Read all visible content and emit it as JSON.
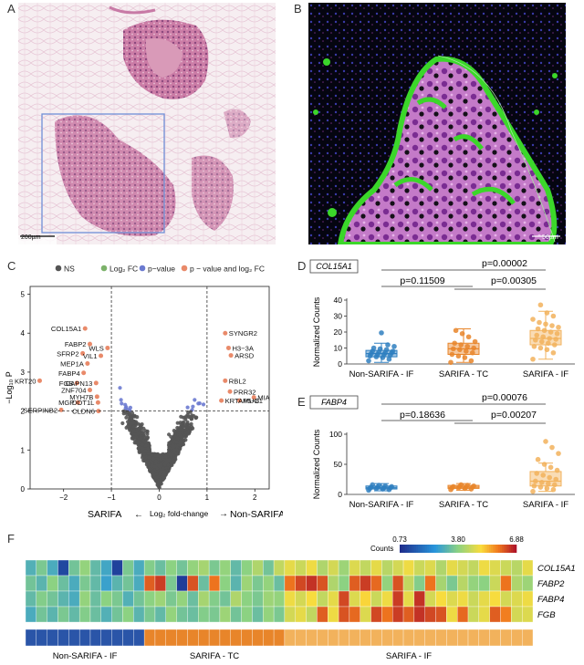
{
  "panels": {
    "A": {
      "label": "A",
      "scale_bar": "200µm"
    },
    "B": {
      "label": "B",
      "scale_bar": "50µm"
    },
    "C": {
      "label": "C"
    },
    "D": {
      "label": "D"
    },
    "E": {
      "label": "E"
    },
    "F": {
      "label": "F"
    }
  },
  "volcano": {
    "legend": [
      "NS",
      "Log₂ FC",
      "p−value",
      "p − value and log₂ FC"
    ],
    "legend_colors": [
      "#555555",
      "#7cb26a",
      "#6b7ad0",
      "#e98a6a"
    ],
    "ylabel": "−Log₁₀ P",
    "xlabel": "Log₂ fold-change",
    "left_group": "SARIFA",
    "right_group": "Non-SARIFA",
    "left_arrow": "←",
    "right_arrow": "→",
    "x_ticks": [
      "−2",
      "−1",
      "0",
      "1",
      "2"
    ],
    "y_ticks": [
      "0",
      "1",
      "2",
      "3",
      "4",
      "5"
    ],
    "gene_labels": [
      {
        "t": "COL15A1",
        "x": -1.55,
        "y": 4.12
      },
      {
        "t": "FABP2",
        "x": -1.45,
        "y": 3.72
      },
      {
        "t": "WLS",
        "x": -1.08,
        "y": 3.62
      },
      {
        "t": "SFRP2",
        "x": -1.6,
        "y": 3.48
      },
      {
        "t": "VIL1",
        "x": -1.22,
        "y": 3.42
      },
      {
        "t": "MEP1A",
        "x": -1.5,
        "y": 3.22
      },
      {
        "t": "FABP4",
        "x": -1.58,
        "y": 2.98
      },
      {
        "t": "KRT20",
        "x": -2.5,
        "y": 2.78
      },
      {
        "t": "FGB",
        "x": -1.72,
        "y": 2.72
      },
      {
        "t": "CAPN13",
        "x": -1.32,
        "y": 2.72
      },
      {
        "t": "ZNF704",
        "x": -1.45,
        "y": 2.54
      },
      {
        "t": "MYH7B",
        "x": -1.3,
        "y": 2.37
      },
      {
        "t": "MGP",
        "x": -1.7,
        "y": 2.22
      },
      {
        "t": "DOT1L",
        "x": -1.28,
        "y": 2.22
      },
      {
        "t": "SERPINB2",
        "x": -2.05,
        "y": 2.03
      },
      {
        "t": "CLDN6",
        "x": -1.27,
        "y": 2.0
      },
      {
        "t": "SYNGR2",
        "x": 1.38,
        "y": 4.0
      },
      {
        "t": "H3−3A",
        "x": 1.45,
        "y": 3.62
      },
      {
        "t": "ARSD",
        "x": 1.5,
        "y": 3.43
      },
      {
        "t": "RBL2",
        "x": 1.38,
        "y": 2.78
      },
      {
        "t": "PRR32",
        "x": 1.48,
        "y": 2.5
      },
      {
        "t": "KRTAP5−8",
        "x": 1.3,
        "y": 2.27
      },
      {
        "t": "MUC1",
        "x": 1.68,
        "y": 2.27
      },
      {
        "t": "MIA",
        "x": 1.98,
        "y": 2.35
      }
    ]
  },
  "chart_data": [
    {
      "type": "scatter",
      "title": "",
      "xlabel": "Log₂ fold-change",
      "ylabel": "−Log₁₀ P",
      "xlim": [
        -2.7,
        2.3
      ],
      "ylim": [
        0,
        5.2
      ],
      "thresholds": {
        "x": [
          -1,
          1
        ],
        "y": 2
      },
      "legend": [
        "NS",
        "Log₂ FC",
        "p−value",
        "p − value and log₂ FC"
      ],
      "legend_placement": "top"
    },
    {
      "type": "box",
      "title": "COL15A1",
      "ylabel": "Normalized Counts",
      "ylim": [
        0,
        40
      ],
      "y_ticks": [
        "0",
        "10",
        "20",
        "30",
        "40"
      ],
      "categories": [
        "Non-SARIFA - IF",
        "SARIFA - TC",
        "SARIFA - IF"
      ],
      "colors": [
        "#2f7fc0",
        "#e8852a",
        "#f2b25c"
      ],
      "boxes": [
        {
          "q1": 4.5,
          "median": 6.5,
          "q3": 8.5,
          "whisker_low": 1,
          "whisker_high": 13,
          "points": [
            2,
            3,
            4,
            4.5,
            5,
            5.5,
            6,
            6,
            6.5,
            7,
            7,
            7.5,
            8,
            8,
            9,
            9.5,
            10,
            11,
            12,
            19.5
          ]
        },
        {
          "q1": 6,
          "median": 9.5,
          "q3": 13,
          "whisker_low": 1,
          "whisker_high": 22,
          "points": [
            1,
            2,
            4,
            5,
            6,
            7,
            8,
            9,
            9.5,
            10,
            11,
            12,
            13,
            14,
            17,
            19,
            21
          ]
        },
        {
          "q1": 12,
          "median": 16,
          "q3": 21,
          "whisker_low": 3,
          "whisker_high": 33,
          "points": [
            3,
            7,
            9,
            10,
            11,
            12,
            13,
            14,
            15,
            15.5,
            16,
            17,
            18,
            19,
            20,
            21,
            22,
            23,
            24,
            25,
            26,
            28,
            30,
            32,
            37
          ]
        }
      ],
      "pvalues": [
        "p=0.11509",
        "p=0.00305",
        "p=0.00002"
      ]
    },
    {
      "type": "box",
      "title": "FABP4",
      "ylabel": "Normalized Counts",
      "ylim": [
        0,
        100
      ],
      "y_ticks": [
        "0",
        "50",
        "100"
      ],
      "categories": [
        "Non-SARIFA - IF",
        "SARIFA - TC",
        "SARIFA - IF"
      ],
      "colors": [
        "#2f7fc0",
        "#e8852a",
        "#f2b25c"
      ],
      "boxes": [
        {
          "q1": 9,
          "median": 11,
          "q3": 14,
          "whisker_low": 6,
          "whisker_high": 18,
          "points": [
            7,
            8,
            9,
            10,
            10,
            11,
            11,
            12,
            12,
            13,
            14,
            15,
            16
          ]
        },
        {
          "q1": 10,
          "median": 12,
          "q3": 15,
          "whisker_low": 7,
          "whisker_high": 18,
          "points": [
            8,
            9,
            10,
            11,
            11,
            12,
            12,
            13,
            13,
            14,
            15,
            16
          ]
        },
        {
          "q1": 14,
          "median": 22,
          "q3": 38,
          "whisker_low": 5,
          "whisker_high": 52,
          "points": [
            5,
            8,
            10,
            12,
            14,
            16,
            18,
            20,
            22,
            25,
            28,
            32,
            35,
            40,
            45,
            50,
            58,
            68,
            78,
            88
          ]
        }
      ],
      "pvalues": [
        "p=0.18636",
        "p=0.00207",
        "p=0.00076"
      ]
    },
    {
      "type": "heatmap",
      "title": "",
      "rows": [
        "COL15A1",
        "FABP2",
        "FABP4",
        "FGB"
      ],
      "groups": [
        "Non-SARIFA - IF",
        "SARIFA - TC",
        "SARIFA - IF"
      ],
      "group_sizes": [
        11,
        13,
        23
      ],
      "legend_title": "Counts",
      "legend_ticks": [
        "0.73",
        "3.80",
        "6.88"
      ],
      "legend_range": [
        0.73,
        6.88
      ],
      "values": [
        [
          3.1,
          3.6,
          3.0,
          1.2,
          3.5,
          3.9,
          3.3,
          2.9,
          1.1,
          3.6,
          3.0,
          3.7,
          3.4,
          3.8,
          3.5,
          3.9,
          4.1,
          3.6,
          3.9,
          3.3,
          3.8,
          4.2,
          3.5,
          4.4,
          4.8,
          4.5,
          4.9,
          4.2,
          4.6,
          4.0,
          4.7,
          4.4,
          4.8,
          4.3,
          4.6,
          4.9,
          4.5,
          4.7,
          4.2,
          4.8,
          4.6,
          4.4,
          4.9,
          4.7,
          4.5,
          4.3,
          4.8
        ],
        [
          3.5,
          3.2,
          3.8,
          3.4,
          3.0,
          3.6,
          3.3,
          2.8,
          3.2,
          3.5,
          3.0,
          6.2,
          6.5,
          3.6,
          1.0,
          6.3,
          3.4,
          6.0,
          3.8,
          3.2,
          4.0,
          3.6,
          3.9,
          3.4,
          6.0,
          6.4,
          6.6,
          6.3,
          4.2,
          3.8,
          6.2,
          6.5,
          6.1,
          3.9,
          6.3,
          4.4,
          3.7,
          6.0,
          4.1,
          3.6,
          4.3,
          3.9,
          3.8,
          4.5,
          6.0,
          4.2,
          4.0
        ],
        [
          3.3,
          3.7,
          3.5,
          3.2,
          3.0,
          3.9,
          3.4,
          3.8,
          3.6,
          3.1,
          3.5,
          3.8,
          4.0,
          3.6,
          3.9,
          3.4,
          4.1,
          3.7,
          3.5,
          4.2,
          3.8,
          3.6,
          4.0,
          3.9,
          4.9,
          4.6,
          5.0,
          4.4,
          4.8,
          6.4,
          4.7,
          5.1,
          4.5,
          4.9,
          6.5,
          4.8,
          6.6,
          4.6,
          5.0,
          4.7,
          4.9,
          4.5,
          4.8,
          5.0,
          4.6,
          4.7,
          4.9
        ],
        [
          3.0,
          3.5,
          3.2,
          3.6,
          3.3,
          3.7,
          3.4,
          3.1,
          3.5,
          3.8,
          3.2,
          3.6,
          3.3,
          3.9,
          3.5,
          3.4,
          3.7,
          3.6,
          4.0,
          3.5,
          3.8,
          3.4,
          3.9,
          3.6,
          4.6,
          4.8,
          4.4,
          6.2,
          4.9,
          6.3,
          6.1,
          4.7,
          6.4,
          6.0,
          6.5,
          6.2,
          6.6,
          6.4,
          6.3,
          4.9,
          6.1,
          4.5,
          4.8,
          6.2,
          5.9,
          4.6,
          4.7
        ]
      ]
    }
  ]
}
